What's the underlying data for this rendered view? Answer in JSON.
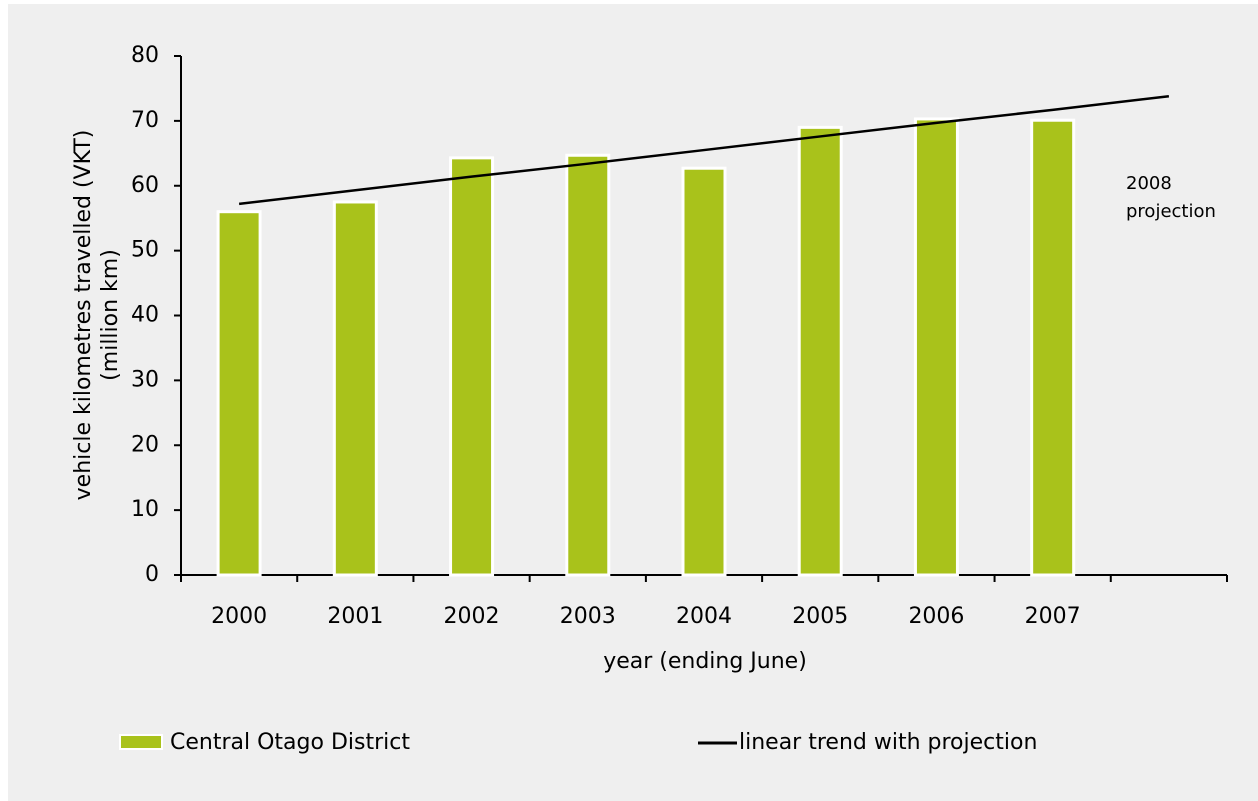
{
  "chart_data": {
    "type": "bar",
    "categories": [
      "2000",
      "2001",
      "2002",
      "2003",
      "2004",
      "2005",
      "2006",
      "2007",
      null
    ],
    "series": [
      {
        "name": "Central Otago District",
        "type": "bar",
        "color": "#a9c21b",
        "values": [
          56,
          57.5,
          64.3,
          64.7,
          62.7,
          69,
          70.3,
          70.1,
          null
        ]
      },
      {
        "name": "linear trend with projection",
        "type": "line",
        "color": "#000000",
        "values": [
          57.2,
          59.3,
          61.4,
          63.4,
          65.5,
          67.6,
          69.7,
          71.7,
          73.8
        ]
      }
    ],
    "ylim": [
      0,
      80
    ],
    "yticks": [
      0,
      10,
      20,
      30,
      40,
      50,
      60,
      70,
      80
    ],
    "x_label": "year (ending June)",
    "y_label": [
      "vehicle kilometres travelled (VKT)",
      "(million km)"
    ],
    "annotation": [
      "2008",
      "projection"
    ],
    "legend": "bottom",
    "grid": false
  }
}
